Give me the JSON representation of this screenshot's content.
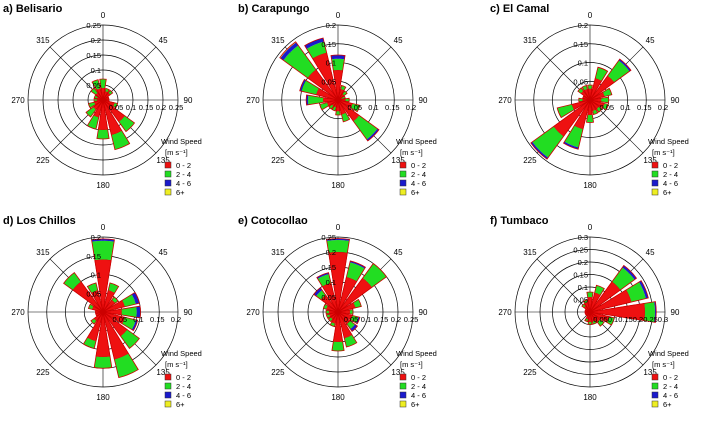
{
  "colors": {
    "background": "#ffffff",
    "grid": "#000000",
    "outline": "#cc0000",
    "speed_0_2": "#ee1111",
    "speed_2_4": "#22dd22",
    "speed_4_6": "#1a1acc",
    "speed_6_plus": "#eeee22"
  },
  "chart_data": [
    {
      "type": "windrose",
      "title": "a) Belisario",
      "radial_ticks": [
        0.05,
        0.1,
        0.15,
        0.2,
        0.25
      ],
      "radial_tick_labels": [
        "0.05",
        "0.1",
        "0.15",
        "0.2",
        "0.25"
      ],
      "rmax": 0.25,
      "angle_labels": [
        "0",
        "45",
        "90",
        "135",
        "180",
        "225",
        "270",
        "315"
      ],
      "legend_title": "Wind Speed",
      "legend_unit": "[m s⁻¹]",
      "legend_labels": [
        "0 - 2",
        "2 - 4",
        "4 - 6",
        "6+"
      ],
      "directions": [
        0,
        22.5,
        45,
        67.5,
        90,
        112.5,
        135,
        157.5,
        180,
        202.5,
        225,
        247.5,
        270,
        292.5,
        315,
        337.5
      ],
      "series": [
        {
          "name": "0 - 2",
          "values": [
            0.04,
            0.03,
            0.03,
            0.02,
            0.02,
            0.04,
            0.09,
            0.12,
            0.1,
            0.06,
            0.04,
            0.03,
            0.02,
            0.02,
            0.03,
            0.04
          ]
        },
        {
          "name": "2 - 4",
          "values": [
            0.03,
            0.01,
            0.01,
            0.0,
            0.0,
            0.01,
            0.04,
            0.05,
            0.03,
            0.04,
            0.03,
            0.02,
            0.01,
            0.01,
            0.02,
            0.03
          ]
        },
        {
          "name": "4 - 6",
          "values": [
            0.0,
            0.0,
            0.0,
            0.0,
            0.0,
            0.0,
            0.0,
            0.0,
            0.0,
            0.0,
            0.0,
            0.0,
            0.0,
            0.0,
            0.0,
            0.0
          ]
        },
        {
          "name": "6+",
          "values": [
            0,
            0,
            0,
            0,
            0,
            0,
            0,
            0,
            0,
            0,
            0,
            0,
            0,
            0,
            0,
            0
          ]
        }
      ]
    },
    {
      "type": "windrose",
      "title": "b) Carapungo",
      "radial_ticks": [
        0.05,
        0.1,
        0.15,
        0.2
      ],
      "radial_tick_labels": [
        "0.05",
        "0.1",
        "0.15",
        "0.2"
      ],
      "rmax": 0.2,
      "angle_labels": [
        "0",
        "45",
        "90",
        "135",
        "180",
        "225",
        "270",
        "315"
      ],
      "legend_title": "Wind Speed",
      "legend_unit": "[m s⁻¹]",
      "legend_labels": [
        "0 - 2",
        "2 - 4",
        "4 - 6",
        "6+"
      ],
      "directions": [
        0,
        22.5,
        45,
        67.5,
        90,
        112.5,
        135,
        157.5,
        180,
        202.5,
        225,
        247.5,
        270,
        292.5,
        315,
        337.5
      ],
      "series": [
        {
          "name": "0 - 2",
          "values": [
            0.08,
            0.03,
            0.02,
            0.01,
            0.02,
            0.04,
            0.07,
            0.04,
            0.03,
            0.02,
            0.02,
            0.03,
            0.04,
            0.06,
            0.1,
            0.13
          ]
        },
        {
          "name": "2 - 4",
          "values": [
            0.03,
            0.01,
            0.01,
            0.01,
            0.01,
            0.02,
            0.06,
            0.02,
            0.01,
            0.01,
            0.01,
            0.02,
            0.04,
            0.04,
            0.08,
            0.03
          ]
        },
        {
          "name": "4 - 6",
          "values": [
            0.01,
            0.0,
            0.0,
            0.0,
            0.0,
            0.0,
            0.005,
            0.0,
            0.0,
            0.0,
            0.0,
            0.0,
            0.005,
            0.005,
            0.01,
            0.01
          ]
        },
        {
          "name": "6+",
          "values": [
            0,
            0,
            0,
            0,
            0,
            0,
            0,
            0,
            0,
            0,
            0,
            0,
            0,
            0,
            0.002,
            0
          ]
        }
      ]
    },
    {
      "type": "windrose",
      "title": "c) El Camal",
      "radial_ticks": [
        0.05,
        0.1,
        0.15,
        0.2
      ],
      "radial_tick_labels": [
        "0.05",
        "0.1",
        "0.15",
        "0.2"
      ],
      "rmax": 0.2,
      "angle_labels": [
        "0",
        "45",
        "90",
        "135",
        "180",
        "225",
        "270",
        "315"
      ],
      "legend_title": "Wind Speed",
      "legend_unit": "[m s⁻¹]",
      "legend_labels": [
        "0 - 2",
        "2 - 4",
        "4 - 6",
        "6+"
      ],
      "directions": [
        0,
        22.5,
        45,
        67.5,
        90,
        112.5,
        135,
        157.5,
        180,
        202.5,
        225,
        247.5,
        270,
        292.5,
        315,
        337.5
      ],
      "series": [
        {
          "name": "0 - 2",
          "values": [
            0.03,
            0.06,
            0.08,
            0.04,
            0.03,
            0.04,
            0.03,
            0.03,
            0.04,
            0.08,
            0.12,
            0.05,
            0.02,
            0.02,
            0.03,
            0.03
          ]
        },
        {
          "name": "2 - 4",
          "values": [
            0.01,
            0.03,
            0.05,
            0.02,
            0.02,
            0.01,
            0.01,
            0.01,
            0.02,
            0.05,
            0.07,
            0.04,
            0.01,
            0.0,
            0.01,
            0.01
          ]
        },
        {
          "name": "4 - 6",
          "values": [
            0.0,
            0.0,
            0.005,
            0.0,
            0.0,
            0.0,
            0.0,
            0.0,
            0.0,
            0.005,
            0.005,
            0.0,
            0.0,
            0.0,
            0.0,
            0.0
          ]
        },
        {
          "name": "6+",
          "values": [
            0,
            0,
            0,
            0,
            0,
            0,
            0,
            0,
            0,
            0,
            0,
            0,
            0,
            0,
            0,
            0
          ]
        }
      ]
    },
    {
      "type": "windrose",
      "title": "d) Los Chillos",
      "radial_ticks": [
        0.05,
        0.1,
        0.15,
        0.2
      ],
      "radial_tick_labels": [
        "0.05",
        "0.1",
        "0.15",
        "0.2"
      ],
      "rmax": 0.2,
      "angle_labels": [
        "0",
        "45",
        "90",
        "135",
        "180",
        "225",
        "270",
        "315"
      ],
      "legend_title": "Wind Speed",
      "legend_unit": "[m s⁻¹]",
      "legend_labels": [
        "0 - 2",
        "2 - 4",
        "4 - 6",
        "6+"
      ],
      "directions": [
        0,
        22.5,
        45,
        67.5,
        90,
        112.5,
        135,
        157.5,
        180,
        202.5,
        225,
        247.5,
        270,
        292.5,
        315,
        337.5
      ],
      "series": [
        {
          "name": "0 - 2",
          "values": [
            0.14,
            0.06,
            0.04,
            0.06,
            0.05,
            0.06,
            0.08,
            0.13,
            0.12,
            0.08,
            0.03,
            0.02,
            0.02,
            0.03,
            0.1,
            0.06
          ]
        },
        {
          "name": "2 - 4",
          "values": [
            0.05,
            0.02,
            0.01,
            0.03,
            0.04,
            0.03,
            0.04,
            0.05,
            0.03,
            0.02,
            0.01,
            0.0,
            0.0,
            0.01,
            0.03,
            0.02
          ]
        },
        {
          "name": "4 - 6",
          "values": [
            0.005,
            0.0,
            0.0,
            0.01,
            0.01,
            0.005,
            0.0,
            0.0,
            0.0,
            0.0,
            0.0,
            0.0,
            0.0,
            0.0,
            0.0,
            0.0
          ]
        },
        {
          "name": "6+",
          "values": [
            0,
            0,
            0,
            0,
            0,
            0,
            0,
            0,
            0,
            0,
            0,
            0,
            0,
            0,
            0,
            0
          ]
        }
      ]
    },
    {
      "type": "windrose",
      "title": "e) Cotocollao",
      "radial_ticks": [
        0.05,
        0.1,
        0.15,
        0.2,
        0.25
      ],
      "radial_tick_labels": [
        "0.05",
        "0.1",
        "0.15",
        "0.2",
        "0.25"
      ],
      "rmax": 0.25,
      "angle_labels": [
        "0",
        "45",
        "90",
        "135",
        "180",
        "225",
        "270",
        "315"
      ],
      "legend_title": "Wind Speed",
      "legend_unit": "[m s⁻¹]",
      "legend_labels": [
        "0 - 2",
        "2 - 4",
        "4 - 6",
        "6+"
      ],
      "directions": [
        0,
        22.5,
        45,
        67.5,
        90,
        112.5,
        135,
        157.5,
        180,
        202.5,
        225,
        247.5,
        270,
        292.5,
        315,
        337.5
      ],
      "series": [
        {
          "name": "0 - 2",
          "values": [
            0.2,
            0.12,
            0.14,
            0.06,
            0.04,
            0.05,
            0.05,
            0.09,
            0.1,
            0.04,
            0.03,
            0.03,
            0.03,
            0.04,
            0.07,
            0.1
          ]
        },
        {
          "name": "2 - 4",
          "values": [
            0.04,
            0.05,
            0.06,
            0.02,
            0.01,
            0.02,
            0.02,
            0.03,
            0.03,
            0.01,
            0.01,
            0.01,
            0.01,
            0.01,
            0.02,
            0.03
          ]
        },
        {
          "name": "4 - 6",
          "values": [
            0.005,
            0.005,
            0.0,
            0.0,
            0.0,
            0.005,
            0.01,
            0.0,
            0.0,
            0.0,
            0.0,
            0.0,
            0.0,
            0.0,
            0.01,
            0.005
          ]
        },
        {
          "name": "6+",
          "values": [
            0,
            0,
            0,
            0,
            0,
            0,
            0,
            0,
            0,
            0,
            0,
            0,
            0,
            0,
            0,
            0
          ]
        }
      ]
    },
    {
      "type": "windrose",
      "title": "f) Tumbaco",
      "radial_ticks": [
        0.05,
        0.1,
        0.15,
        0.2,
        0.25,
        0.3
      ],
      "radial_tick_labels": [
        "0.05",
        "0.1",
        "0.15",
        "0.2",
        "0.25",
        "0.3"
      ],
      "rmax": 0.3,
      "angle_labels": [
        "0",
        "45",
        "90",
        "135",
        "180",
        "225",
        "270",
        "315"
      ],
      "legend_title": "Wind Speed",
      "legend_unit": "[m s⁻¹]",
      "legend_labels": [
        "0 - 2",
        "2 - 4",
        "4 - 6",
        "6+"
      ],
      "directions": [
        0,
        22.5,
        45,
        67.5,
        90,
        112.5,
        135,
        157.5,
        180,
        202.5,
        225,
        247.5,
        270,
        292.5,
        315,
        337.5
      ],
      "series": [
        {
          "name": "0 - 2",
          "values": [
            0.06,
            0.08,
            0.15,
            0.17,
            0.22,
            0.08,
            0.05,
            0.04,
            0.04,
            0.03,
            0.02,
            0.02,
            0.02,
            0.02,
            0.03,
            0.04
          ]
        },
        {
          "name": "2 - 4",
          "values": [
            0.02,
            0.03,
            0.07,
            0.06,
            0.04,
            0.02,
            0.02,
            0.01,
            0.01,
            0.01,
            0.0,
            0.0,
            0.0,
            0.0,
            0.01,
            0.01
          ]
        },
        {
          "name": "4 - 6",
          "values": [
            0.0,
            0.0,
            0.01,
            0.01,
            0.005,
            0.0,
            0.0,
            0.0,
            0.0,
            0.0,
            0.0,
            0.0,
            0.0,
            0.0,
            0.0,
            0.0
          ]
        },
        {
          "name": "6+",
          "values": [
            0,
            0,
            0,
            0,
            0,
            0,
            0,
            0,
            0,
            0,
            0,
            0,
            0,
            0,
            0,
            0
          ]
        }
      ]
    }
  ]
}
